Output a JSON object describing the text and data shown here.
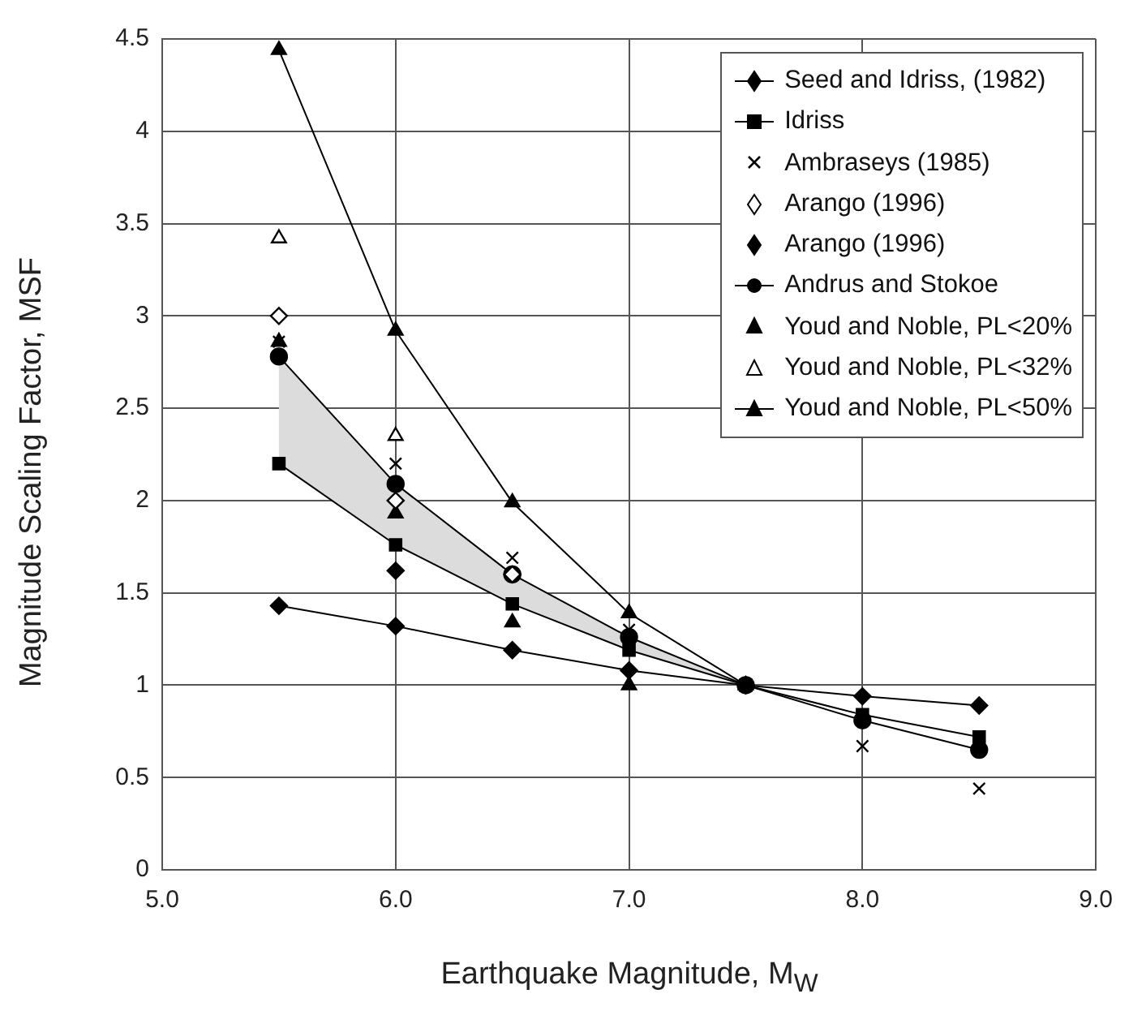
{
  "chart_data": {
    "type": "line",
    "xlabel": "Earthquake Magnitude, M$_{W}$",
    "ylabel": "Magnitude Scaling Factor, MSF",
    "x": [
      5.5,
      6.0,
      6.5,
      7.0,
      7.5,
      8.0,
      8.5
    ],
    "series": [
      {
        "name": "Seed and Idriss, (1982)",
        "marker": "diamond",
        "color": "#000000",
        "values": [
          1.43,
          1.32,
          1.19,
          1.08,
          1.0,
          0.94,
          0.89
        ]
      },
      {
        "name": "Idriss",
        "marker": "square",
        "color": "#000000",
        "values": [
          2.2,
          1.76,
          1.44,
          1.19,
          1.0,
          0.84,
          0.72
        ]
      },
      {
        "name": "Ambraseys (1985)",
        "type": "scatter",
        "marker": "cross",
        "color": "#000000",
        "values": [
          2.86,
          2.2,
          1.69,
          1.3,
          null,
          0.67,
          0.44
        ]
      },
      {
        "name": "Arango (1996)",
        "type": "scatter",
        "marker": "diamond",
        "color": "#ffffff",
        "values": [
          3.0,
          2.0,
          1.6,
          null,
          null,
          null,
          null
        ]
      },
      {
        "name": "Arango (1996)",
        "type": "scatter",
        "marker": "diamond",
        "color": "#000000",
        "values": [
          null,
          1.62,
          null,
          null,
          null,
          null,
          null
        ]
      },
      {
        "name": "Andrus and Stokoe",
        "marker": "circle",
        "color": "#000000",
        "values": [
          2.78,
          2.09,
          1.6,
          1.26,
          1.0,
          0.81,
          0.65
        ],
        "upper": [
          2.78,
          2.09,
          1.6,
          1.26,
          1.0,
          null,
          null
        ],
        "lower": [
          2.2,
          1.76,
          1.44,
          1.19,
          1.0,
          null,
          null
        ]
      },
      {
        "name": "Youd and Noble, PL<20%",
        "type": "scatter",
        "marker": "triangle",
        "color": "#000000",
        "values": [
          2.86,
          1.93,
          1.34,
          1.0,
          null,
          null,
          null
        ]
      },
      {
        "name": "Youd and Noble, PL<32%",
        "type": "scatter",
        "marker": "triangle",
        "color": "#ffffff",
        "values": [
          3.42,
          2.35,
          null,
          null,
          null,
          null,
          null
        ]
      },
      {
        "name": "Youd and Noble, PL<50%",
        "marker": "triangle",
        "color": "#000000",
        "values": [
          4.44,
          2.92,
          1.99,
          1.39,
          1.0,
          null,
          null
        ]
      }
    ],
    "xlim": [
      5,
      9
    ],
    "xticks": [
      {
        "value": 5,
        "label": "5.0"
      },
      {
        "value": 6,
        "label": "6.0"
      },
      {
        "value": 7,
        "label": "7.0"
      },
      {
        "value": 8,
        "label": "8.0"
      },
      {
        "value": 9,
        "label": "9.0"
      }
    ],
    "ylim": [
      0,
      4.5
    ],
    "yticks": [
      0,
      0.5,
      1,
      1.5,
      2,
      2.5,
      3,
      3.5,
      4,
      4.5
    ],
    "grid": true,
    "legend": "top right"
  }
}
